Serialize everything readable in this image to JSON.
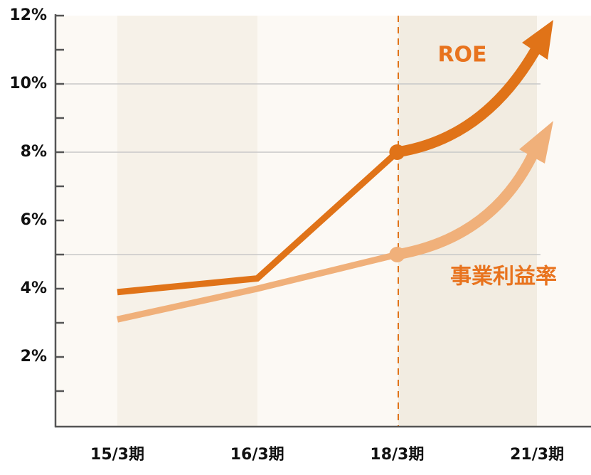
{
  "chart_data": {
    "type": "line",
    "categories": [
      "15/3期",
      "16/3期",
      "18/3期",
      "21/3期"
    ],
    "series": [
      {
        "name": "ROE",
        "color": "#e07318",
        "values": [
          3.9,
          4.3,
          8.0,
          null
        ]
      },
      {
        "name": "事業利益率",
        "color": "#f0b07a",
        "values": [
          3.1,
          4.0,
          5.0,
          null
        ]
      }
    ],
    "ylim": [
      0,
      12
    ],
    "yticks": [
      {
        "value": 2,
        "label": "2%"
      },
      {
        "value": 4,
        "label": "4%"
      },
      {
        "value": 6,
        "label": "6%"
      },
      {
        "value": 8,
        "label": "8%"
      },
      {
        "value": 10,
        "label": "10%"
      },
      {
        "value": 12,
        "label": "12%"
      }
    ],
    "yticks_minor": [
      1,
      3,
      5,
      7,
      9,
      11
    ],
    "grid_values": [
      5,
      8,
      10
    ]
  }
}
